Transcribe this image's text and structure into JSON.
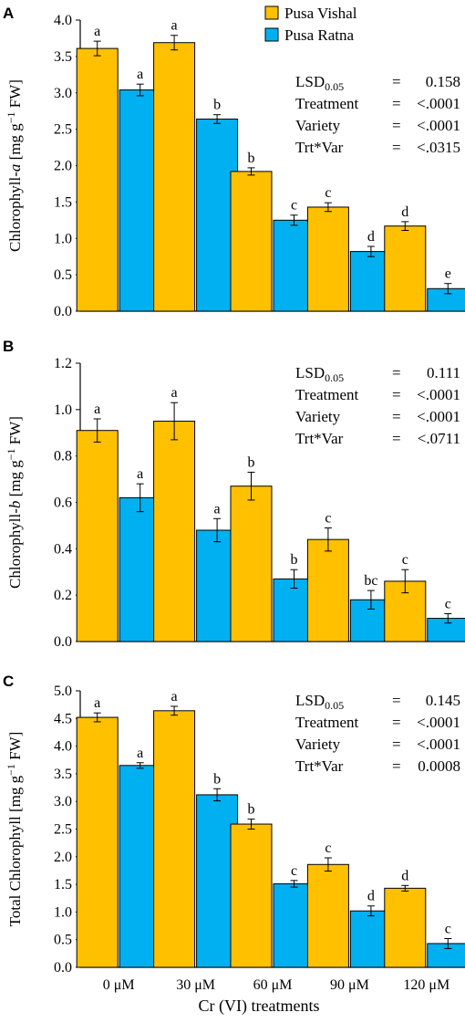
{
  "colors": {
    "pusa_vishal": "#FFC000",
    "pusa_ratna": "#00B0F0",
    "axis": "#000000"
  },
  "xlabel": "Cr (VI) treatments",
  "categories": [
    "0 μM",
    "30 μM",
    "60 μM",
    "90 μM",
    "120 μM"
  ],
  "legend": [
    "Pusa Vishal",
    "Pusa Ratna"
  ],
  "chart_data": [
    {
      "type": "bar",
      "panel": "A",
      "ylabel_pre": "Chlorophyll-",
      "ylabel_italic": "a",
      "ylabel_post": " [mg g",
      "ylabel_sup": "−1",
      "ylabel_end": " FW]",
      "ylim": [
        0,
        4.0
      ],
      "yticks": [
        "0.0",
        "0.5",
        "1.0",
        "1.5",
        "2.0",
        "2.5",
        "3.0",
        "3.5",
        "4.0"
      ],
      "categories": [
        "0 μM",
        "30 μM",
        "60 μM",
        "90 μM",
        "120 μM"
      ],
      "series": [
        {
          "name": "Pusa Vishal",
          "values": [
            3.61,
            3.69,
            1.92,
            1.43,
            1.17
          ],
          "errors": [
            0.1,
            0.1,
            0.05,
            0.06,
            0.06
          ],
          "letters": [
            "a",
            "a",
            "b",
            "c",
            "d"
          ]
        },
        {
          "name": "Pusa Ratna",
          "values": [
            3.04,
            2.64,
            1.25,
            0.82,
            0.31
          ],
          "errors": [
            0.08,
            0.06,
            0.07,
            0.07,
            0.07
          ],
          "letters": [
            "a",
            "b",
            "c",
            "d",
            "e"
          ]
        }
      ],
      "stats": [
        {
          "label": "LSD",
          "sub": "0.05",
          "eq": "=",
          "value": "0.158"
        },
        {
          "label": "Treatment",
          "sub": "",
          "eq": "=",
          "value": "<.0001"
        },
        {
          "label": "Variety",
          "sub": "",
          "eq": "=",
          "value": "<.0001"
        },
        {
          "label": "Trt*Var",
          "sub": "",
          "eq": "=",
          "value": "<.0315"
        }
      ],
      "legend_shown": true
    },
    {
      "type": "bar",
      "panel": "B",
      "ylabel_pre": "Chlorophyll-",
      "ylabel_italic": "b",
      "ylabel_post": " [mg g",
      "ylabel_sup": "−1",
      "ylabel_end": " FW]",
      "ylim": [
        0,
        1.2
      ],
      "yticks": [
        "0.0",
        "0.2",
        "0.4",
        "0.6",
        "0.8",
        "1.0",
        "1.2"
      ],
      "categories": [
        "0 μM",
        "30 μM",
        "60 μM",
        "90 μM",
        "120 μM"
      ],
      "series": [
        {
          "name": "Pusa Vishal",
          "values": [
            0.91,
            0.95,
            0.67,
            0.44,
            0.26
          ],
          "errors": [
            0.05,
            0.08,
            0.06,
            0.05,
            0.05
          ],
          "letters": [
            "a",
            "a",
            "b",
            "c",
            "c"
          ]
        },
        {
          "name": "Pusa Ratna",
          "values": [
            0.62,
            0.48,
            0.27,
            0.18,
            0.1
          ],
          "errors": [
            0.06,
            0.05,
            0.04,
            0.04,
            0.02
          ],
          "letters": [
            "a",
            "a",
            "b",
            "bc",
            "c"
          ]
        }
      ],
      "stats": [
        {
          "label": "LSD",
          "sub": "0.05",
          "eq": "=",
          "value": "0.111"
        },
        {
          "label": "Treatment",
          "sub": "",
          "eq": "=",
          "value": "<.0001"
        },
        {
          "label": "Variety",
          "sub": "",
          "eq": "=",
          "value": "<.0001"
        },
        {
          "label": "Trt*Var",
          "sub": "",
          "eq": "=",
          "value": "<.0711"
        }
      ],
      "legend_shown": false
    },
    {
      "type": "bar",
      "panel": "C",
      "ylabel_pre": "Total Chlorophyll",
      "ylabel_italic": "",
      "ylabel_post": " [mg g",
      "ylabel_sup": "−1",
      "ylabel_end": " FW]",
      "ylim": [
        0,
        5.0
      ],
      "yticks": [
        "0.0",
        "0.5",
        "1.0",
        "1.5",
        "2.0",
        "2.5",
        "3.0",
        "3.5",
        "4.0",
        "4.5",
        "5.0"
      ],
      "categories": [
        "0 μM",
        "30 μM",
        "60 μM",
        "90 μM",
        "120 μM"
      ],
      "series": [
        {
          "name": "Pusa Vishal",
          "values": [
            4.52,
            4.64,
            2.59,
            1.86,
            1.43
          ],
          "errors": [
            0.08,
            0.08,
            0.09,
            0.12,
            0.05
          ],
          "letters": [
            "a",
            "a",
            "b",
            "c",
            "d"
          ]
        },
        {
          "name": "Pusa Ratna",
          "values": [
            3.65,
            3.12,
            1.51,
            1.02,
            0.43
          ],
          "errors": [
            0.05,
            0.11,
            0.06,
            0.09,
            0.09
          ],
          "letters": [
            "a",
            "b",
            "c",
            "d",
            "c"
          ]
        }
      ],
      "stats": [
        {
          "label": "LSD",
          "sub": "0.05",
          "eq": "=",
          "value": "0.145"
        },
        {
          "label": "Treatment",
          "sub": "",
          "eq": "=",
          "value": "<.0001"
        },
        {
          "label": "Variety",
          "sub": "",
          "eq": "=",
          "value": "<.0001"
        },
        {
          "label": "Trt*Var",
          "sub": "",
          "eq": "=",
          "value": "0.0008"
        }
      ],
      "legend_shown": false
    }
  ]
}
